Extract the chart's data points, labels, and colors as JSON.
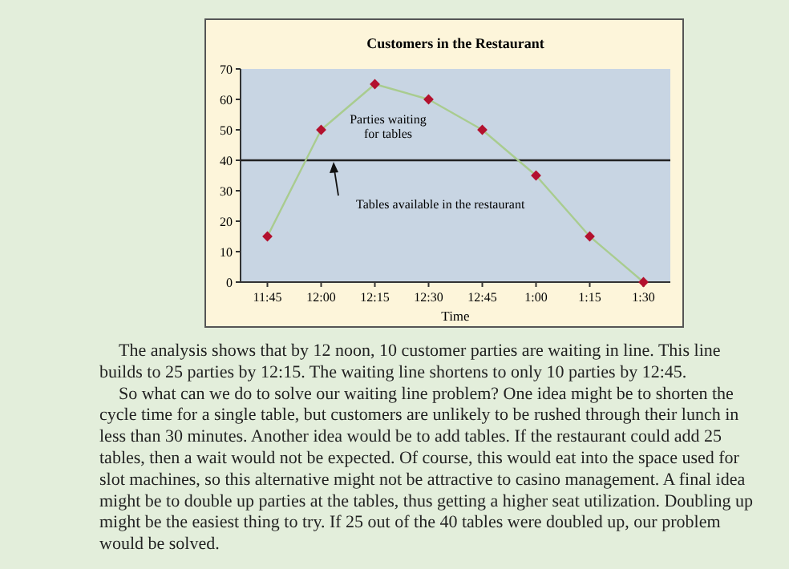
{
  "chart_data": {
    "type": "line",
    "title": "Customers in the Restaurant",
    "xlabel": "Time",
    "categories": [
      "11:45",
      "12:00",
      "12:15",
      "12:30",
      "12:45",
      "1:00",
      "1:15",
      "1:30"
    ],
    "series": [
      {
        "color": "#a9cc8f",
        "values": [
          15,
          50,
          65,
          60,
          50,
          35,
          15,
          0
        ]
      }
    ],
    "ylim": [
      0,
      70
    ],
    "yticks": [
      0,
      10,
      20,
      30,
      40,
      50,
      60,
      70
    ],
    "grid": false,
    "marker": "diamond",
    "line_style": "solid",
    "ref_lines": [
      {
        "axis": "y",
        "value": 40,
        "label": "Tables available in the restaurant",
        "color": "#222222"
      }
    ],
    "annotations": [
      "Parties waiting\nfor tables",
      "The analysis shows that by 12 noon, 10 customer parties are waiting in line. This line builds to 25 parties by 12:15. The waiting line shortens to only 10 parties by 12:45.",
      "So what can we do to solve our waiting line problem? One idea might be to shorten the cycle time for a single table, but customers are unlikely to be rushed through their lunch in less than 30 minutes. Another idea would be to add tables. If the restaurant could add 25 tables, then a wait would not be expected. Of course, this would eat into the space used for slot machines, so this alternative might not be attractive to casino management. A final idea might be to double up parties at the tables, thus getting a higher seat utilization. Doubling up might be the easiest thing to try. If 25 out of the 40 tables were doubled up, our problem would be solved."
    ]
  }
}
